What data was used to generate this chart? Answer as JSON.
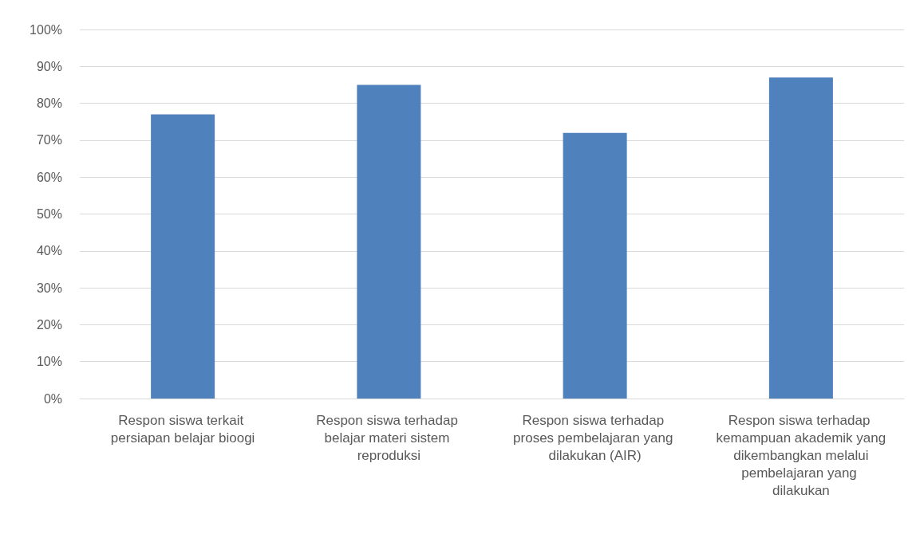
{
  "chart_data": {
    "type": "bar",
    "categories": [
      "Respon siswa terkait persiapan belajar bioogi",
      "Respon siswa terhadap belajar materi sistem reproduksi",
      "Respon siswa terhadap proses pembelajaran yang dilakukan (AIR)",
      "Respon siswa terhadap kemampuan akademik yang dikembangkan melalui pembelajaran yang dilakukan"
    ],
    "values": [
      77,
      85,
      72,
      87
    ],
    "color": "#4f81bd",
    "ylim": [
      0,
      100
    ],
    "yticks": [
      {
        "value": 0,
        "label": "0%"
      },
      {
        "value": 10,
        "label": "10%"
      },
      {
        "value": 20,
        "label": "20%"
      },
      {
        "value": 30,
        "label": "30%"
      },
      {
        "value": 40,
        "label": "40%"
      },
      {
        "value": 50,
        "label": "50%"
      },
      {
        "value": 60,
        "label": "60%"
      },
      {
        "value": 70,
        "label": "70%"
      },
      {
        "value": 80,
        "label": "80%"
      },
      {
        "value": 90,
        "label": "90%"
      },
      {
        "value": 100,
        "label": "100%"
      }
    ],
    "grid": "y"
  }
}
